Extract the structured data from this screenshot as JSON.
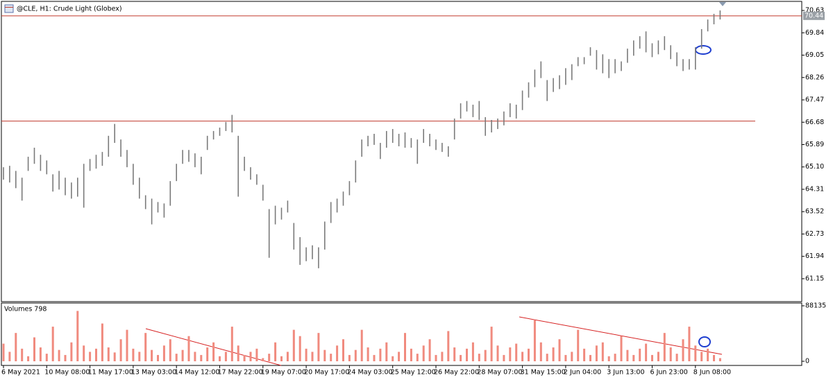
{
  "chart_data": [
    {
      "type": "ohlc",
      "title": "@CLE, H1:  Crude Light (Globex)",
      "color": "#7a7a7a",
      "categories": [
        "6 May 2021",
        null,
        null,
        null,
        null,
        null,
        null,
        "10 May 08:00",
        null,
        null,
        null,
        null,
        null,
        null,
        "11 May 17:00",
        null,
        null,
        null,
        null,
        null,
        null,
        "13 May 03:00",
        null,
        null,
        null,
        null,
        null,
        null,
        "14 May 12:00",
        null,
        null,
        null,
        null,
        null,
        null,
        "17 May 22:00",
        null,
        null,
        null,
        null,
        null,
        null,
        "19 May 07:00",
        null,
        null,
        null,
        null,
        null,
        null,
        "20 May 17:00",
        null,
        null,
        null,
        null,
        null,
        null,
        "24 May 03:00",
        null,
        null,
        null,
        null,
        null,
        null,
        "25 May 12:00",
        null,
        null,
        null,
        null,
        null,
        null,
        "26 May 22:00",
        null,
        null,
        null,
        null,
        null,
        null,
        "28 May 07:00",
        null,
        null,
        null,
        null,
        null,
        null,
        "31 May 15:00",
        null,
        null,
        null,
        null,
        null,
        null,
        "2 Jun 04:00",
        null,
        null,
        null,
        null,
        null,
        null,
        "3 Jun 13:00",
        null,
        null,
        null,
        null,
        null,
        null,
        "6 Jun 23:00",
        null,
        null,
        null,
        null,
        null,
        null,
        "8 Jun 08:00",
        null,
        null,
        null,
        null
      ],
      "high": [
        65.09,
        65.14,
        64.96,
        64.72,
        65.46,
        65.78,
        65.53,
        65.33,
        64.84,
        64.96,
        64.72,
        64.55,
        64.72,
        65.21,
        65.38,
        65.53,
        65.63,
        66.2,
        66.62,
        66.07,
        65.7,
        65.21,
        64.72,
        64.1,
        63.98,
        63.86,
        63.81,
        64.6,
        65.21,
        65.7,
        65.7,
        65.58,
        65.46,
        66.2,
        66.37,
        66.49,
        66.69,
        66.94,
        66.2,
        65.46,
        65.09,
        64.84,
        64.47,
        63.61,
        63.73,
        63.66,
        63.91,
        63.12,
        62.62,
        62.26,
        62.33,
        62.26,
        63.17,
        63.86,
        63.98,
        64.23,
        64.6,
        65.33,
        66.07,
        66.2,
        66.27,
        65.95,
        66.37,
        66.44,
        66.27,
        66.32,
        66.12,
        66.07,
        66.44,
        66.27,
        66.07,
        65.95,
        65.83,
        66.81,
        67.35,
        67.43,
        67.3,
        67.43,
        66.86,
        66.76,
        66.81,
        67.06,
        67.35,
        67.3,
        67.8,
        68.09,
        68.54,
        68.83,
        68.17,
        68.24,
        68.34,
        68.59,
        68.73,
        68.98,
        68.98,
        69.33,
        69.23,
        69.08,
        68.91,
        68.91,
        68.83,
        69.28,
        69.57,
        69.72,
        69.89,
        69.47,
        69.57,
        69.72,
        69.4,
        69.15,
        68.91,
        68.91,
        69.33,
        69.97,
        70.31,
        70.51,
        70.63
      ],
      "low": [
        64.65,
        64.55,
        64.35,
        63.91,
        64.96,
        65.21,
        64.96,
        64.84,
        64.23,
        64.3,
        64.1,
        63.98,
        64.05,
        63.66,
        64.96,
        65.04,
        65.14,
        65.46,
        65.95,
        65.46,
        65.09,
        64.47,
        63.98,
        63.61,
        63.07,
        63.49,
        63.31,
        63.73,
        64.6,
        65.21,
        65.28,
        65.09,
        64.84,
        65.7,
        66.07,
        66.2,
        66.37,
        66.32,
        64.05,
        64.96,
        64.65,
        64.47,
        63.91,
        61.89,
        63.07,
        63.24,
        63.49,
        62.18,
        61.64,
        61.77,
        61.84,
        61.52,
        62.18,
        63.12,
        63.49,
        63.73,
        64.1,
        64.55,
        65.46,
        65.83,
        65.88,
        65.38,
        65.78,
        65.95,
        65.83,
        65.78,
        65.78,
        65.21,
        65.95,
        65.83,
        65.7,
        65.63,
        65.46,
        66.07,
        66.81,
        67.06,
        66.86,
        66.76,
        66.2,
        66.32,
        66.44,
        66.57,
        66.86,
        66.81,
        67.11,
        67.55,
        67.92,
        68.24,
        67.43,
        67.75,
        67.85,
        68.0,
        68.17,
        68.66,
        68.73,
        69.03,
        68.54,
        68.41,
        68.24,
        68.41,
        68.49,
        68.78,
        69.03,
        69.28,
        69.15,
        68.98,
        69.08,
        69.23,
        68.91,
        68.66,
        68.49,
        68.54,
        68.54,
        69.28,
        69.89,
        70.14,
        70.31
      ],
      "ylim": [
        60.34,
        70.95
      ],
      "yticks": [
        70.63,
        69.84,
        69.05,
        68.26,
        67.47,
        66.68,
        65.89,
        {
          "value": 65.1,
          "label": "65.10"
        },
        64.31,
        63.52,
        62.73,
        61.94,
        61.15
      ],
      "price_line": 70.44,
      "level_line": 66.72,
      "line_color": "#c0392b"
    },
    {
      "type": "bar",
      "title": "Volumes 798",
      "color": "#f08a7e",
      "values": [
        28000,
        15000,
        45000,
        20000,
        8000,
        38000,
        22000,
        12000,
        55000,
        18000,
        10000,
        30000,
        80000,
        25000,
        15000,
        20000,
        60000,
        22000,
        14000,
        35000,
        50000,
        20000,
        15000,
        45000,
        18000,
        10000,
        25000,
        35000,
        12000,
        18000,
        40000,
        15000,
        10000,
        22000,
        30000,
        8000,
        15000,
        55000,
        25000,
        10000,
        15000,
        20000,
        5000,
        12000,
        30000,
        8000,
        15000,
        50000,
        40000,
        20000,
        15000,
        45000,
        18000,
        12000,
        25000,
        35000,
        10000,
        18000,
        50000,
        22000,
        10000,
        20000,
        30000,
        8000,
        15000,
        45000,
        20000,
        12000,
        25000,
        35000,
        10000,
        15000,
        48000,
        22000,
        10000,
        20000,
        30000,
        12000,
        18000,
        55000,
        25000,
        10000,
        22000,
        28000,
        15000,
        20000,
        65000,
        30000,
        12000,
        22000,
        35000,
        10000,
        15000,
        50000,
        20000,
        10000,
        25000,
        30000,
        8000,
        12000,
        40000,
        18000,
        10000,
        20000,
        28000,
        10000,
        15000,
        45000,
        22000,
        12000,
        35000,
        55000,
        25000,
        15000,
        20000,
        10000,
        5000
      ],
      "ylim": [
        0,
        88135
      ],
      "yticks": [
        88135,
        0
      ]
    }
  ]
}
